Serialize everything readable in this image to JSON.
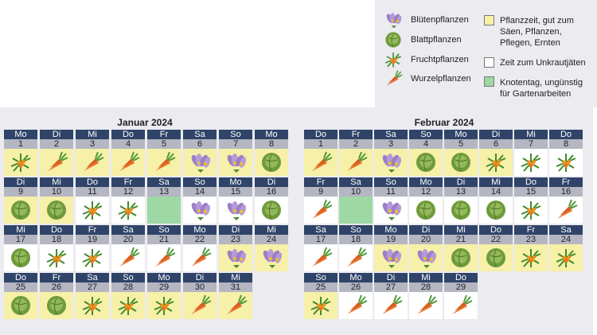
{
  "legend": {
    "plants": [
      {
        "type": "bluete",
        "label": "Blütenpflanzen"
      },
      {
        "type": "blatt",
        "label": "Blattpflanzen"
      },
      {
        "type": "frucht",
        "label": "Fruchtpflanzen"
      },
      {
        "type": "wurzel",
        "label": "Wurzelpflanzen"
      }
    ],
    "colors": [
      {
        "key": "Y",
        "label1": "Pflanzzeit, gut zum",
        "label2": "Säen, Pflanzen,",
        "label3": "Pflegen, Ernten"
      },
      {
        "key": "W",
        "label1": "Zeit zum Unkrautjäten"
      },
      {
        "key": "G",
        "label1": "Knotentag, ungünstig",
        "label2": "für Gartenarbeiten"
      }
    ]
  },
  "bg_colors": {
    "Y": "#f6f0a8",
    "W": "#ffffff",
    "G": "#9ed8a4"
  },
  "months": [
    {
      "title": "Januar 2024",
      "days": [
        [
          "Mo",
          1,
          "frucht",
          "Y"
        ],
        [
          "Di",
          2,
          "wurzel",
          "Y"
        ],
        [
          "Mi",
          3,
          "wurzel",
          "Y"
        ],
        [
          "Do",
          4,
          "wurzel",
          "Y"
        ],
        [
          "Fr",
          5,
          "wurzel",
          "Y"
        ],
        [
          "Sa",
          6,
          "bluete",
          "Y"
        ],
        [
          "So",
          7,
          "bluete",
          "Y"
        ],
        [
          "Mo",
          8,
          "blatt",
          "Y"
        ],
        [
          "Di",
          9,
          "blatt",
          "Y"
        ],
        [
          "Mi",
          10,
          "blatt",
          "Y"
        ],
        [
          "Do",
          11,
          "frucht",
          "W"
        ],
        [
          "Fr",
          12,
          "frucht",
          "W"
        ],
        [
          "Sa",
          13,
          "",
          "G"
        ],
        [
          "So",
          14,
          "bluete",
          "W"
        ],
        [
          "Mo",
          15,
          "bluete",
          "W"
        ],
        [
          "Di",
          16,
          "blatt",
          "W"
        ],
        [
          "Mi",
          17,
          "blatt",
          "W"
        ],
        [
          "Do",
          18,
          "frucht",
          "W"
        ],
        [
          "Fr",
          19,
          "frucht",
          "W"
        ],
        [
          "Sa",
          20,
          "wurzel",
          "W"
        ],
        [
          "So",
          21,
          "wurzel",
          "W"
        ],
        [
          "Mo",
          22,
          "wurzel",
          "W"
        ],
        [
          "Di",
          23,
          "bluete",
          "Y"
        ],
        [
          "Mi",
          24,
          "bluete",
          "Y"
        ],
        [
          "Do",
          25,
          "blatt",
          "Y"
        ],
        [
          "Fr",
          26,
          "blatt",
          "Y"
        ],
        [
          "Sa",
          27,
          "frucht",
          "Y"
        ],
        [
          "So",
          28,
          "frucht",
          "Y"
        ],
        [
          "Mo",
          29,
          "frucht",
          "Y"
        ],
        [
          "Di",
          30,
          "wurzel",
          "Y"
        ],
        [
          "Mi",
          31,
          "wurzel",
          "Y"
        ]
      ]
    },
    {
      "title": "Februar 2024",
      "days": [
        [
          "Do",
          1,
          "wurzel",
          "Y"
        ],
        [
          "Fr",
          2,
          "wurzel",
          "Y"
        ],
        [
          "Sa",
          3,
          "bluete",
          "Y"
        ],
        [
          "So",
          4,
          "blatt",
          "Y"
        ],
        [
          "Mo",
          5,
          "blatt",
          "Y"
        ],
        [
          "Di",
          6,
          "frucht",
          "Y"
        ],
        [
          "Mi",
          7,
          "frucht",
          "W"
        ],
        [
          "Do",
          8,
          "frucht",
          "W"
        ],
        [
          "Fr",
          9,
          "wurzel",
          "W"
        ],
        [
          "Sa",
          10,
          "",
          "G"
        ],
        [
          "So",
          11,
          "bluete",
          "W"
        ],
        [
          "Mo",
          12,
          "blatt",
          "W"
        ],
        [
          "Di",
          13,
          "blatt",
          "W"
        ],
        [
          "Mi",
          14,
          "blatt",
          "W"
        ],
        [
          "Do",
          15,
          "frucht",
          "W"
        ],
        [
          "Fr",
          16,
          "wurzel",
          "W"
        ],
        [
          "Sa",
          17,
          "wurzel",
          "W"
        ],
        [
          "So",
          18,
          "wurzel",
          "W"
        ],
        [
          "Mo",
          19,
          "bluete",
          "Y"
        ],
        [
          "Di",
          20,
          "bluete",
          "Y"
        ],
        [
          "Mi",
          21,
          "blatt",
          "Y"
        ],
        [
          "Do",
          22,
          "blatt",
          "Y"
        ],
        [
          "Fr",
          23,
          "frucht",
          "Y"
        ],
        [
          "Sa",
          24,
          "frucht",
          "Y"
        ],
        [
          "So",
          25,
          "frucht",
          "Y"
        ],
        [
          "Mo",
          26,
          "wurzel",
          "W"
        ],
        [
          "Di",
          27,
          "wurzel",
          "W"
        ],
        [
          "Mi",
          28,
          "wurzel",
          "W"
        ],
        [
          "Do",
          29,
          "wurzel",
          "W"
        ]
      ]
    }
  ]
}
